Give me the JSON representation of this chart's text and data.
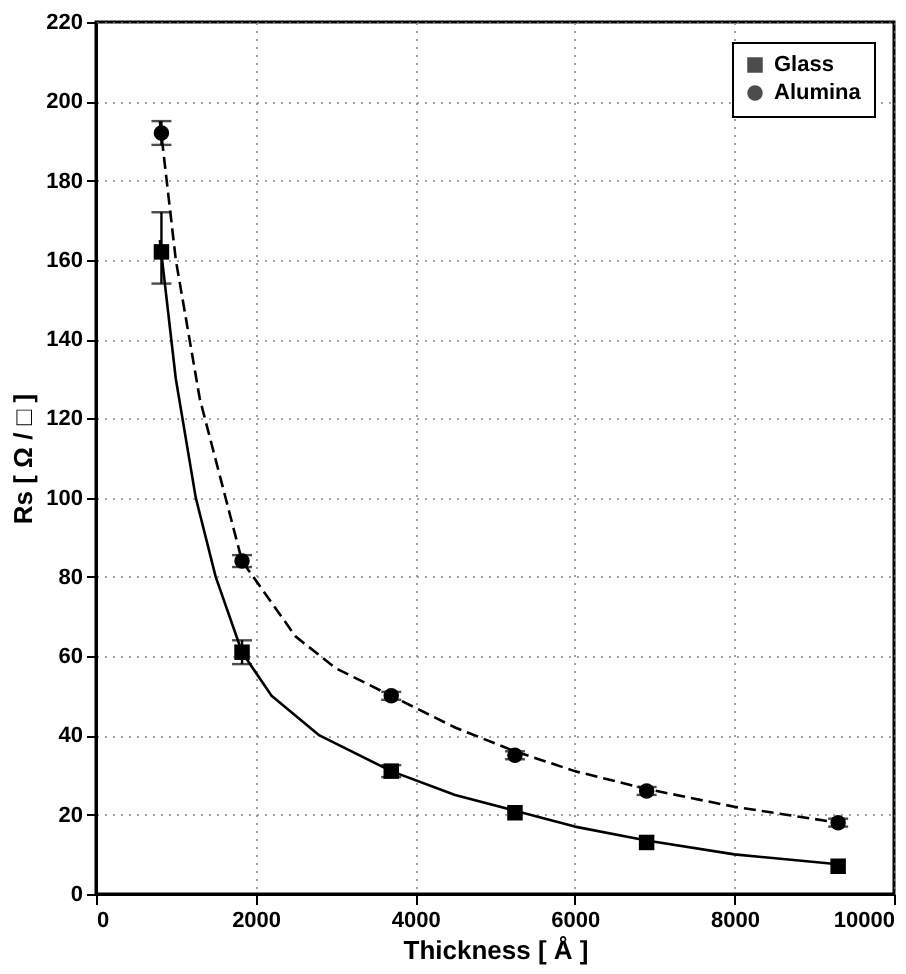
{
  "chart_data": {
    "type": "scatter",
    "xlabel": "Thickness [ Å ]",
    "ylabel": "Rs [ Ω / □ ]",
    "xlim": [
      0,
      10000
    ],
    "xticks": [
      0,
      2000,
      4000,
      6000,
      8000,
      10000
    ],
    "ylim": [
      0,
      220
    ],
    "yticks": [
      0,
      20,
      40,
      60,
      80,
      100,
      120,
      140,
      160,
      180,
      200,
      220
    ],
    "grid": true,
    "legend": "top right",
    "series": [
      {
        "name": "Glass",
        "marker": "square",
        "color": "#000000",
        "x": [
          820,
          1830,
          3700,
          5250,
          6900,
          9300
        ],
        "values": [
          162,
          61,
          31,
          20.5,
          13,
          7
        ],
        "errors": [
          [
            154,
            172
          ],
          3,
          1.5,
          null,
          null,
          null
        ]
      },
      {
        "name": "Alumina",
        "marker": "circle",
        "color": "#000000",
        "x": [
          820,
          1830,
          3700,
          5250,
          6900,
          9300
        ],
        "values": [
          192,
          84,
          50,
          35,
          26,
          18
        ],
        "errors": [
          3,
          1.5,
          1,
          1,
          1,
          1
        ]
      },
      {
        "type": "line",
        "line_style": "solid",
        "marker": "none",
        "color": "#000000",
        "x": [
          800,
          1000,
          1250,
          1500,
          1830,
          2200,
          2800,
          3700,
          4500,
          5250,
          6000,
          6900,
          8000,
          9300
        ],
        "values": [
          165,
          130,
          100,
          80,
          61,
          50,
          40,
          31,
          25,
          21,
          17,
          13.5,
          10,
          7.5
        ]
      },
      {
        "type": "line",
        "line_style": "dashed",
        "marker": "none",
        "color": "#000000",
        "x": [
          800,
          1000,
          1300,
          1830,
          2500,
          3000,
          3700,
          4500,
          5250,
          6000,
          6900,
          8000,
          9300
        ],
        "values": [
          195,
          160,
          125,
          84,
          65,
          57,
          50,
          42,
          36,
          31,
          26.5,
          22,
          18
        ]
      }
    ]
  }
}
